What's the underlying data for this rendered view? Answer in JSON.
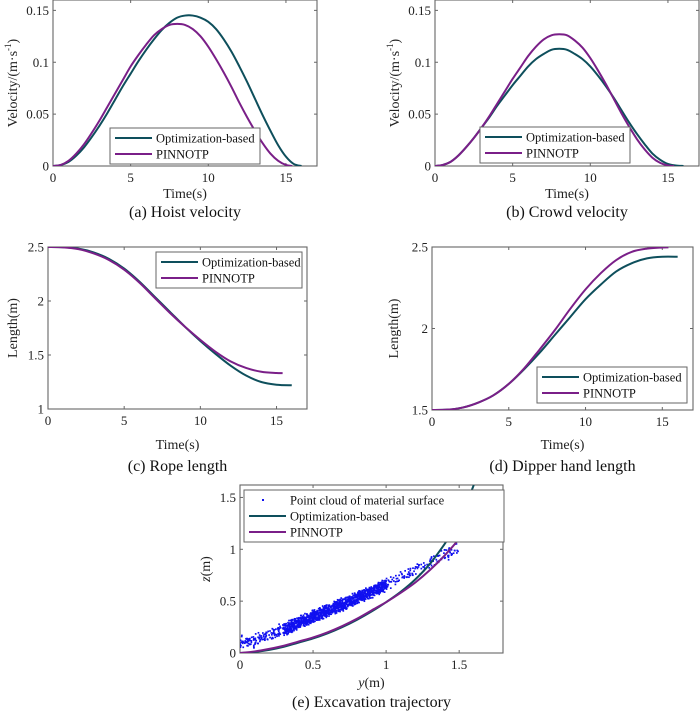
{
  "colors": {
    "optimization": "#0e4f5c",
    "pinnotp": "#7a1f88",
    "points": "#1010f0",
    "axis": "#666666"
  },
  "chart_data": [
    {
      "id": "a",
      "type": "line",
      "caption": "(a) Hoist velocity",
      "xlabel": "Time(s)",
      "ylabel": "Velocity/(m·s",
      "ylabel_sup": "-1",
      "ylabel_close": ")",
      "xlim": [
        0,
        17
      ],
      "ylim": [
        0,
        0.16
      ],
      "xticks": [
        0,
        5,
        10,
        15
      ],
      "xtick_labels": [
        "0",
        "5",
        "10",
        "15"
      ],
      "yticks": [
        0,
        0.05,
        0.1,
        0.15
      ],
      "ytick_labels": [
        "0",
        "0.05",
        "0.1",
        "0.15"
      ],
      "legend": {
        "position": "bottom-left",
        "entries": [
          "Optimization-based",
          "PINNOTP"
        ]
      },
      "series": [
        {
          "name": "Optimization-based",
          "x": [
            0,
            0.5,
            1,
            1.5,
            2,
            2.5,
            3,
            3.5,
            4,
            4.5,
            5,
            5.5,
            6,
            6.5,
            7,
            7.5,
            8,
            8.5,
            9,
            9.5,
            10,
            10.5,
            11,
            11.5,
            12,
            12.5,
            13,
            13.5,
            14,
            14.5,
            15,
            15.5,
            16
          ],
          "y": [
            0,
            0.001,
            0.004,
            0.01,
            0.018,
            0.028,
            0.039,
            0.051,
            0.064,
            0.077,
            0.089,
            0.101,
            0.112,
            0.122,
            0.131,
            0.138,
            0.143,
            0.145,
            0.145,
            0.143,
            0.139,
            0.132,
            0.122,
            0.11,
            0.096,
            0.081,
            0.065,
            0.049,
            0.034,
            0.02,
            0.009,
            0.002,
            0
          ]
        },
        {
          "name": "PINNOTP",
          "x": [
            0,
            0.5,
            1,
            1.5,
            2,
            2.5,
            3,
            3.5,
            4,
            4.5,
            5,
            5.5,
            6,
            6.5,
            7,
            7.5,
            8,
            8.5,
            9,
            9.5,
            10,
            10.5,
            11,
            11.5,
            12,
            12.5,
            13,
            13.5,
            14,
            14.5,
            15,
            15.4
          ],
          "y": [
            0,
            0.001,
            0.005,
            0.012,
            0.021,
            0.032,
            0.044,
            0.057,
            0.07,
            0.083,
            0.096,
            0.107,
            0.117,
            0.126,
            0.132,
            0.136,
            0.137,
            0.136,
            0.132,
            0.125,
            0.115,
            0.103,
            0.09,
            0.076,
            0.061,
            0.047,
            0.034,
            0.022,
            0.012,
            0.005,
            0.001,
            0
          ]
        }
      ]
    },
    {
      "id": "b",
      "type": "line",
      "caption": "(b) Crowd velocity",
      "xlabel": "Time(s)",
      "ylabel": "Velocity/(m·s",
      "ylabel_sup": "-1",
      "ylabel_close": ")",
      "xlim": [
        0,
        17
      ],
      "ylim": [
        0,
        0.16
      ],
      "xticks": [
        0,
        5,
        10,
        15
      ],
      "xtick_labels": [
        "0",
        "5",
        "10",
        "15"
      ],
      "yticks": [
        0,
        0.05,
        0.1,
        0.15
      ],
      "ytick_labels": [
        "0",
        "0.05",
        "0.1",
        "0.15"
      ],
      "legend": {
        "position": "bottom-center",
        "entries": [
          "Optimization-based",
          "PINNOTP"
        ]
      },
      "series": [
        {
          "name": "Optimization-based",
          "x": [
            0,
            0.5,
            1,
            1.5,
            2,
            2.5,
            3,
            3.5,
            4,
            4.5,
            5,
            5.5,
            6,
            6.5,
            7,
            7.5,
            8,
            8.5,
            9,
            9.5,
            10,
            10.5,
            11,
            11.5,
            12,
            12.5,
            13,
            13.5,
            14,
            14.5,
            15,
            15.5,
            16
          ],
          "y": [
            0,
            0.001,
            0.004,
            0.01,
            0.018,
            0.027,
            0.037,
            0.047,
            0.058,
            0.068,
            0.078,
            0.087,
            0.096,
            0.103,
            0.108,
            0.112,
            0.113,
            0.112,
            0.108,
            0.103,
            0.096,
            0.087,
            0.077,
            0.066,
            0.054,
            0.042,
            0.031,
            0.021,
            0.012,
            0.006,
            0.002,
            0.0005,
            0
          ]
        },
        {
          "name": "PINNOTP",
          "x": [
            0,
            0.5,
            1,
            1.5,
            2,
            2.5,
            3,
            3.5,
            4,
            4.5,
            5,
            5.5,
            6,
            6.5,
            7,
            7.5,
            8,
            8.5,
            9,
            9.5,
            10,
            10.5,
            11,
            11.5,
            12,
            12.5,
            13,
            13.5,
            14,
            14.5,
            15,
            15.4
          ],
          "y": [
            0,
            0.001,
            0.004,
            0.01,
            0.018,
            0.027,
            0.037,
            0.048,
            0.06,
            0.072,
            0.084,
            0.095,
            0.106,
            0.115,
            0.122,
            0.126,
            0.127,
            0.126,
            0.121,
            0.114,
            0.104,
            0.092,
            0.079,
            0.065,
            0.051,
            0.038,
            0.026,
            0.016,
            0.008,
            0.003,
            0.0005,
            0
          ]
        }
      ]
    },
    {
      "id": "c",
      "type": "line",
      "caption": "(c) Rope length",
      "xlabel": "Time(s)",
      "ylabel": "Length(m)",
      "xlim": [
        0,
        17
      ],
      "ylim": [
        1,
        2.5
      ],
      "xticks": [
        0,
        5,
        10,
        15
      ],
      "xtick_labels": [
        "0",
        "5",
        "10",
        "15"
      ],
      "yticks": [
        1,
        1.5,
        2,
        2.5
      ],
      "ytick_labels": [
        "1",
        "1.5",
        "2",
        "2.5"
      ],
      "legend": {
        "position": "top-right",
        "entries": [
          "Optimization-based",
          "PINNOTP"
        ]
      },
      "series": [
        {
          "name": "Optimization-based",
          "x": [
            0,
            1,
            2,
            3,
            4,
            5,
            6,
            7,
            8,
            9,
            10,
            11,
            12,
            13,
            14,
            15,
            16
          ],
          "y": [
            2.5,
            2.498,
            2.485,
            2.45,
            2.39,
            2.3,
            2.18,
            2.04,
            1.9,
            1.76,
            1.63,
            1.51,
            1.4,
            1.31,
            1.25,
            1.225,
            1.22
          ]
        },
        {
          "name": "PINNOTP",
          "x": [
            0,
            1,
            2,
            3,
            4,
            5,
            6,
            7,
            8,
            9,
            10,
            11,
            12,
            13,
            14,
            15,
            15.4
          ],
          "y": [
            2.5,
            2.497,
            2.48,
            2.44,
            2.38,
            2.29,
            2.17,
            2.03,
            1.89,
            1.76,
            1.64,
            1.53,
            1.44,
            1.38,
            1.345,
            1.333,
            1.332
          ]
        }
      ]
    },
    {
      "id": "d",
      "type": "line",
      "caption": "(d) Dipper hand length",
      "xlabel": "Time(s)",
      "ylabel": "Length(m)",
      "xlim": [
        0,
        17
      ],
      "ylim": [
        1.5,
        2.5
      ],
      "xticks": [
        0,
        5,
        10,
        15
      ],
      "xtick_labels": [
        "0",
        "5",
        "10",
        "15"
      ],
      "yticks": [
        1.5,
        2,
        2.5
      ],
      "ytick_labels": [
        "1.5",
        "2",
        "2.5"
      ],
      "legend": {
        "position": "bottom-right",
        "entries": [
          "Optimization-based",
          "PINNOTP"
        ]
      },
      "series": [
        {
          "name": "Optimization-based",
          "x": [
            0,
            1,
            2,
            3,
            4,
            5,
            6,
            7,
            8,
            9,
            10,
            11,
            12,
            13,
            14,
            15,
            16
          ],
          "y": [
            1.5,
            1.502,
            1.515,
            1.545,
            1.59,
            1.66,
            1.75,
            1.85,
            1.96,
            2.07,
            2.18,
            2.27,
            2.35,
            2.4,
            2.43,
            2.44,
            2.44
          ]
        },
        {
          "name": "PINNOTP",
          "x": [
            0,
            1,
            2,
            3,
            4,
            5,
            6,
            7,
            8,
            9,
            10,
            11,
            12,
            13,
            14,
            15,
            15.4
          ],
          "y": [
            1.5,
            1.502,
            1.515,
            1.545,
            1.59,
            1.66,
            1.755,
            1.87,
            1.99,
            2.12,
            2.24,
            2.34,
            2.42,
            2.47,
            2.49,
            2.497,
            2.498
          ]
        }
      ]
    },
    {
      "id": "e",
      "type": "scatter",
      "caption": "(e) Excavation trajectory",
      "xlabel_italic": "y",
      "xlabel_unit": "(m)",
      "ylabel_italic": "z",
      "ylabel_unit": "(m)",
      "xlim": [
        0,
        1.8
      ],
      "ylim": [
        0,
        1.62
      ],
      "xticks": [
        0,
        0.5,
        1,
        1.5
      ],
      "xtick_labels": [
        "0",
        "0.5",
        "1",
        "1.5"
      ],
      "yticks": [
        0,
        0.5,
        1,
        1.5
      ],
      "ytick_labels": [
        "0",
        "0.5",
        "1",
        "1.5"
      ],
      "legend": {
        "position": "top-left",
        "entries": [
          "Point cloud of material surface",
          "Optimization-based",
          "PINNOTP"
        ]
      },
      "point_cloud_trend": {
        "x": [
          0.0,
          0.1,
          0.2,
          0.3,
          0.4,
          0.5,
          0.6,
          0.7,
          0.8,
          0.9,
          1.0,
          1.1,
          1.2,
          1.3,
          1.4,
          1.5
        ],
        "y": [
          0.11,
          0.12,
          0.17,
          0.23,
          0.29,
          0.35,
          0.41,
          0.47,
          0.53,
          0.59,
          0.66,
          0.73,
          0.8,
          0.87,
          0.96,
          1.0
        ]
      },
      "series": [
        {
          "name": "Optimization-based",
          "x": [
            0,
            0.1,
            0.2,
            0.3,
            0.4,
            0.5,
            0.6,
            0.7,
            0.8,
            0.9,
            1.0,
            1.1,
            1.2,
            1.3,
            1.4,
            1.45,
            1.5,
            1.55,
            1.6
          ],
          "y": [
            0,
            0.01,
            0.03,
            0.06,
            0.1,
            0.14,
            0.19,
            0.25,
            0.32,
            0.4,
            0.49,
            0.59,
            0.71,
            0.86,
            1.05,
            1.16,
            1.29,
            1.44,
            1.62
          ]
        },
        {
          "name": "PINNOTP",
          "x": [
            0,
            0.1,
            0.2,
            0.3,
            0.4,
            0.5,
            0.6,
            0.7,
            0.8,
            0.9,
            1.0,
            1.1,
            1.2,
            1.3,
            1.4,
            1.5,
            1.55,
            1.6,
            1.66
          ],
          "y": [
            0,
            0.015,
            0.04,
            0.07,
            0.11,
            0.15,
            0.2,
            0.26,
            0.33,
            0.41,
            0.49,
            0.58,
            0.68,
            0.8,
            0.94,
            1.1,
            1.2,
            1.32,
            1.54
          ]
        }
      ]
    }
  ]
}
